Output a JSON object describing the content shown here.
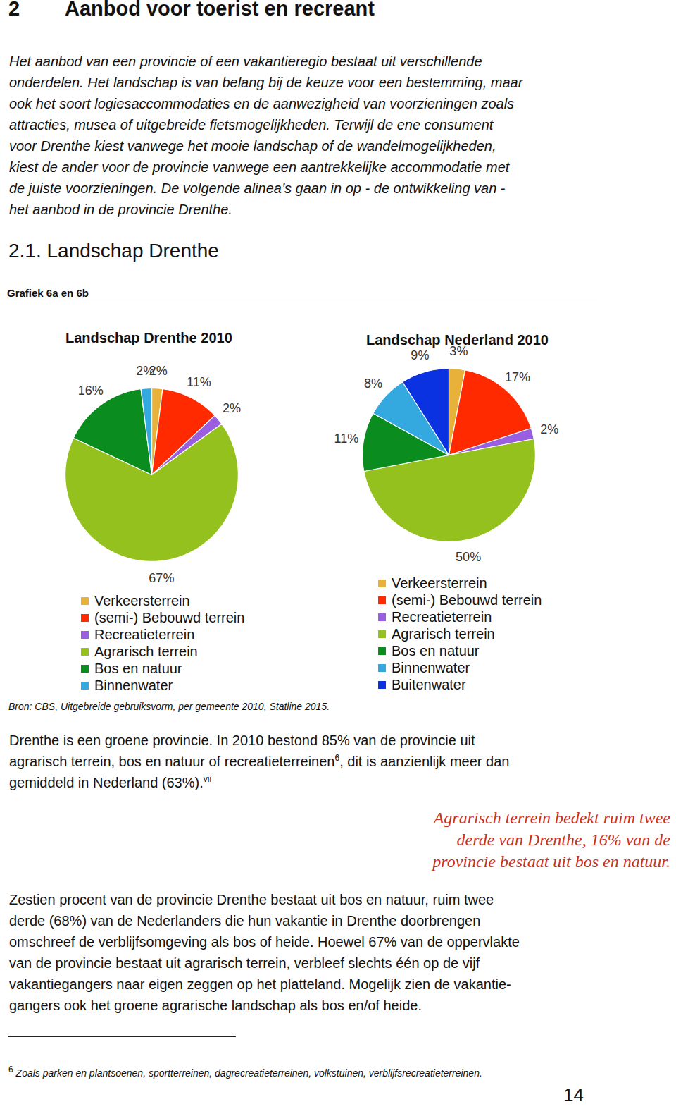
{
  "header": {
    "number": "2",
    "title": "Aanbod voor toerist en recreant"
  },
  "intro_lines": [
    "Het aanbod van een provincie of een vakantieregio bestaat uit verschillende",
    "onderdelen. Het landschap is van belang bij de keuze voor een bestemming, maar",
    "ook het soort logiesaccommodaties en de aanwezigheid van voorzieningen zoals",
    "attracties, musea of uitgebreide fietsmogelijkheden. Terwijl de ene consument",
    "voor Drenthe kiest vanwege het mooie landschap of de wandelmogelijkheden,",
    "kiest de ander voor de provincie vanwege een aantrekkelijke accommodatie met",
    "de juiste voorzieningen. De volgende alinea’s gaan in op - de ontwikkeling van -",
    "het aanbod in de provincie Drenthe."
  ],
  "section_title": "2.1. Landschap Drenthe",
  "figure_label": "Grafiek 6a en 6b",
  "chart_data": [
    {
      "type": "pie",
      "title": "Landschap Drenthe 2010",
      "categories": [
        "Verkeersterrein",
        "(semi-) Bebouwd terrein",
        "Recreatieterrein",
        "Agrarisch terrein",
        "Bos en natuur",
        "Binnenwater"
      ],
      "values": [
        2,
        11,
        2,
        67,
        16,
        2
      ],
      "value_labels": [
        "2%",
        "11%",
        "2%",
        "67%",
        "16%",
        "2%"
      ],
      "colors": [
        "#e8b23a",
        "#ff2a00",
        "#9a5fe0",
        "#95c11f",
        "#0b8c1e",
        "#34a9e0"
      ],
      "data_labels": true,
      "legend": "bottom"
    },
    {
      "type": "pie",
      "title": "Landschap Nederland 2010",
      "categories": [
        "Verkeersterrein",
        "(semi-) Bebouwd terrein",
        "Recreatieterrein",
        "Agrarisch terrein",
        "Bos en natuur",
        "Binnenwater",
        "Buitenwater"
      ],
      "values": [
        3,
        17,
        2,
        50,
        11,
        8,
        9
      ],
      "value_labels": [
        "3%",
        "17%",
        "2%",
        "50%",
        "11%",
        "8%",
        "9%"
      ],
      "colors": [
        "#e8b23a",
        "#ff2a00",
        "#9a5fe0",
        "#95c11f",
        "#0b8c1e",
        "#34a9e0",
        "#0a32e0"
      ],
      "data_labels": true,
      "legend": "bottom"
    }
  ],
  "source": "Bron: CBS, Uitgebreide gebruiksvorm, per gemeente 2010, Statline 2015.",
  "paragraph1": [
    {
      "text": "Drenthe is een groene provincie. In 2010 bestond 85% van de provincie uit"
    },
    {
      "text": "agrarisch terrein, bos en natuur of recreatieterreinen",
      "sup": "6",
      "after": ", dit is aanzienlijk meer dan"
    },
    {
      "text": "gemiddeld in Nederland (63%).",
      "sup": "vii"
    }
  ],
  "annotation": [
    "Agrarisch terrein bedekt ruim twee",
    "derde van Drenthe, 16% van de",
    "provincie bestaat uit bos en natuur."
  ],
  "paragraph2": [
    "Zestien procent van de provincie Drenthe bestaat uit bos en natuur, ruim twee",
    "derde (68%) van de Nederlanders die hun vakantie in Drenthe doorbrengen",
    "omschreef de verblijfsomgeving als bos of heide. Hoewel 67% van de oppervlakte",
    "van de provincie bestaat uit agrarisch terrein, verbleef slechts één op de vijf",
    "vakantiegangers naar eigen zeggen op het platteland. Mogelijk zien de vakantie-",
    "gangers ook het groene agrarische landschap als bos en/of heide."
  ],
  "footnote": {
    "number": "6",
    "text": "Zoals parken en plantsoenen, sportterreinen, dagrecreatieterreinen, volkstuinen, verblijfsrecreatieterreinen."
  },
  "page_number": "14"
}
